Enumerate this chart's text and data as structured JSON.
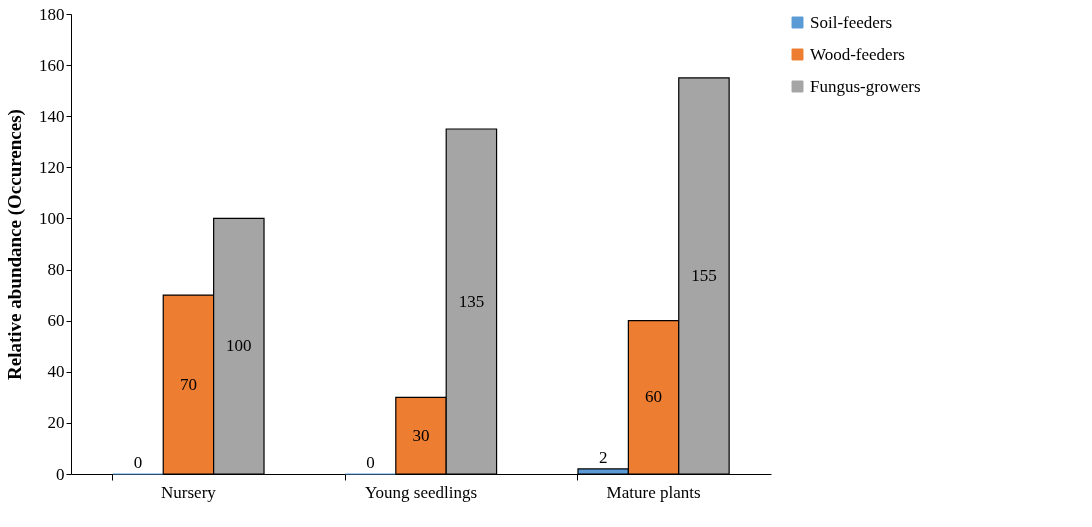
{
  "chart_data": {
    "type": "bar",
    "ylabel": "Relative abundance (Occurences)",
    "categories": [
      "Nursery",
      "Young seedlings",
      "Mature plants"
    ],
    "series": [
      {
        "name": "Soil-feeders",
        "color": "#5b9bd5",
        "values": [
          0,
          0,
          2
        ]
      },
      {
        "name": "Wood-feeders",
        "color": "#ed7d31",
        "values": [
          70,
          30,
          60
        ]
      },
      {
        "name": "Fungus-growers",
        "color": "#a5a5a5",
        "values": [
          100,
          135,
          155
        ]
      }
    ],
    "ylim": [
      0,
      180
    ],
    "yticks": [
      0,
      20,
      40,
      60,
      80,
      100,
      120,
      140,
      160,
      180
    ],
    "data_labels": true,
    "legend": "right",
    "grid": false
  }
}
